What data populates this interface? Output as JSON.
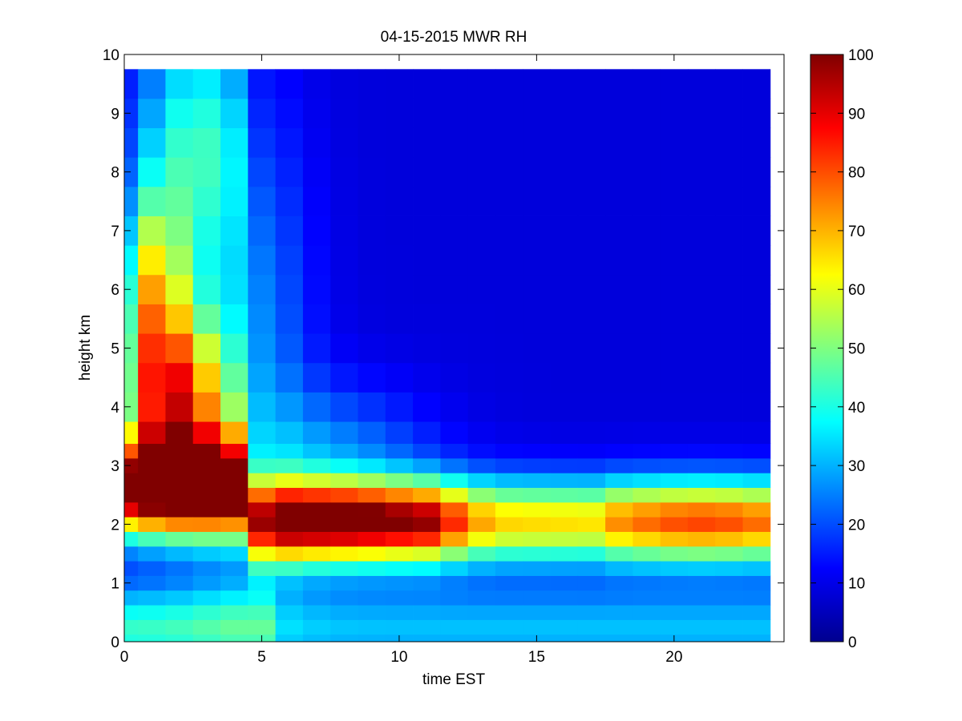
{
  "chart_data": {
    "type": "heatmap",
    "title": "04-15-2015 MWR RH",
    "xlabel": "time EST",
    "ylabel": "height km",
    "xlim": [
      0,
      24
    ],
    "ylim": [
      0,
      10
    ],
    "x_ticks": [
      "0",
      "5",
      "10",
      "15",
      "20"
    ],
    "y_ticks": [
      "0",
      "1",
      "2",
      "3",
      "4",
      "5",
      "6",
      "7",
      "8",
      "9",
      "10"
    ],
    "colorbar": {
      "colormap": "jet",
      "range": [
        0,
        100
      ],
      "ticks": [
        "0",
        "10",
        "20",
        "30",
        "40",
        "50",
        "60",
        "70",
        "80",
        "90",
        "100"
      ]
    },
    "x_centers": [
      0,
      1,
      2,
      3,
      4,
      5,
      6,
      7,
      8,
      9,
      10,
      11,
      12,
      13,
      14,
      15,
      16,
      17,
      18,
      19,
      20,
      21,
      22,
      23
    ],
    "height_levels_km": [
      0,
      0.25,
      0.5,
      0.75,
      1.0,
      1.25,
      1.5,
      1.75,
      2.0,
      2.25,
      2.5,
      2.75,
      3.0,
      3.25,
      3.5,
      4.0,
      4.5,
      5.0,
      5.5,
      6.0,
      6.5,
      7.0,
      7.5,
      8.0,
      8.5,
      9.0,
      9.5
    ],
    "grid": false,
    "legend": "colorbar-right"
  }
}
